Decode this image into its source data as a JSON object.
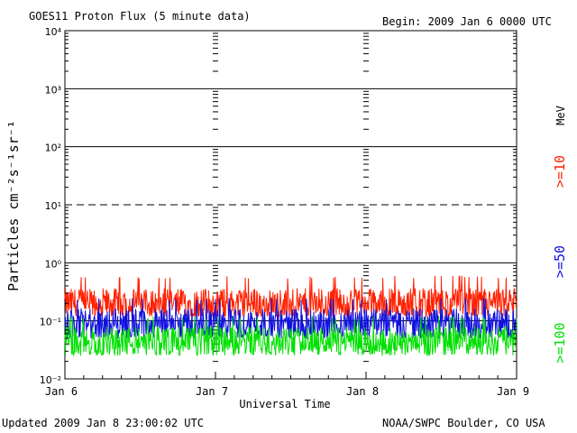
{
  "header": {
    "title": "GOES11 Proton Flux (5 minute data)",
    "begin": "Begin: 2009 Jan 6 0000 UTC"
  },
  "footer": {
    "updated": "Updated 2009 Jan  8 23:00:02 UTC",
    "source": "NOAA/SWPC Boulder, CO USA"
  },
  "colors": {
    "ge10": "#ff2000",
    "ge50": "#1010e0",
    "ge100": "#00e000"
  },
  "chart_data": {
    "type": "line",
    "title": "GOES11 Proton Flux (5 minute data)",
    "xlabel": "Universal Time",
    "ylabel": "Particles cm⁻²s⁻¹sr⁻¹",
    "y_scale": "log",
    "ylim": [
      0.01,
      10000
    ],
    "xlim": [
      "2009-01-06 00:00",
      "2009-01-09 00:00"
    ],
    "x_ticks": [
      "Jan 6",
      "Jan 7",
      "Jan 8",
      "Jan 9"
    ],
    "y_ticks": [
      "10⁻²",
      "10⁻¹",
      "10⁰",
      "10¹",
      "10²",
      "10³",
      "10⁴"
    ],
    "unit_label": "MeV",
    "legend_placement": "right",
    "series": [
      {
        "name": ">=10",
        "color": "#ff2000",
        "typical": 0.2,
        "min": 0.12,
        "max": 0.6
      },
      {
        "name": ">=50",
        "color": "#1010e0",
        "typical": 0.09,
        "min": 0.05,
        "max": 0.25
      },
      {
        "name": ">=100",
        "color": "#00e000",
        "typical": 0.045,
        "min": 0.025,
        "max": 0.12
      }
    ]
  }
}
